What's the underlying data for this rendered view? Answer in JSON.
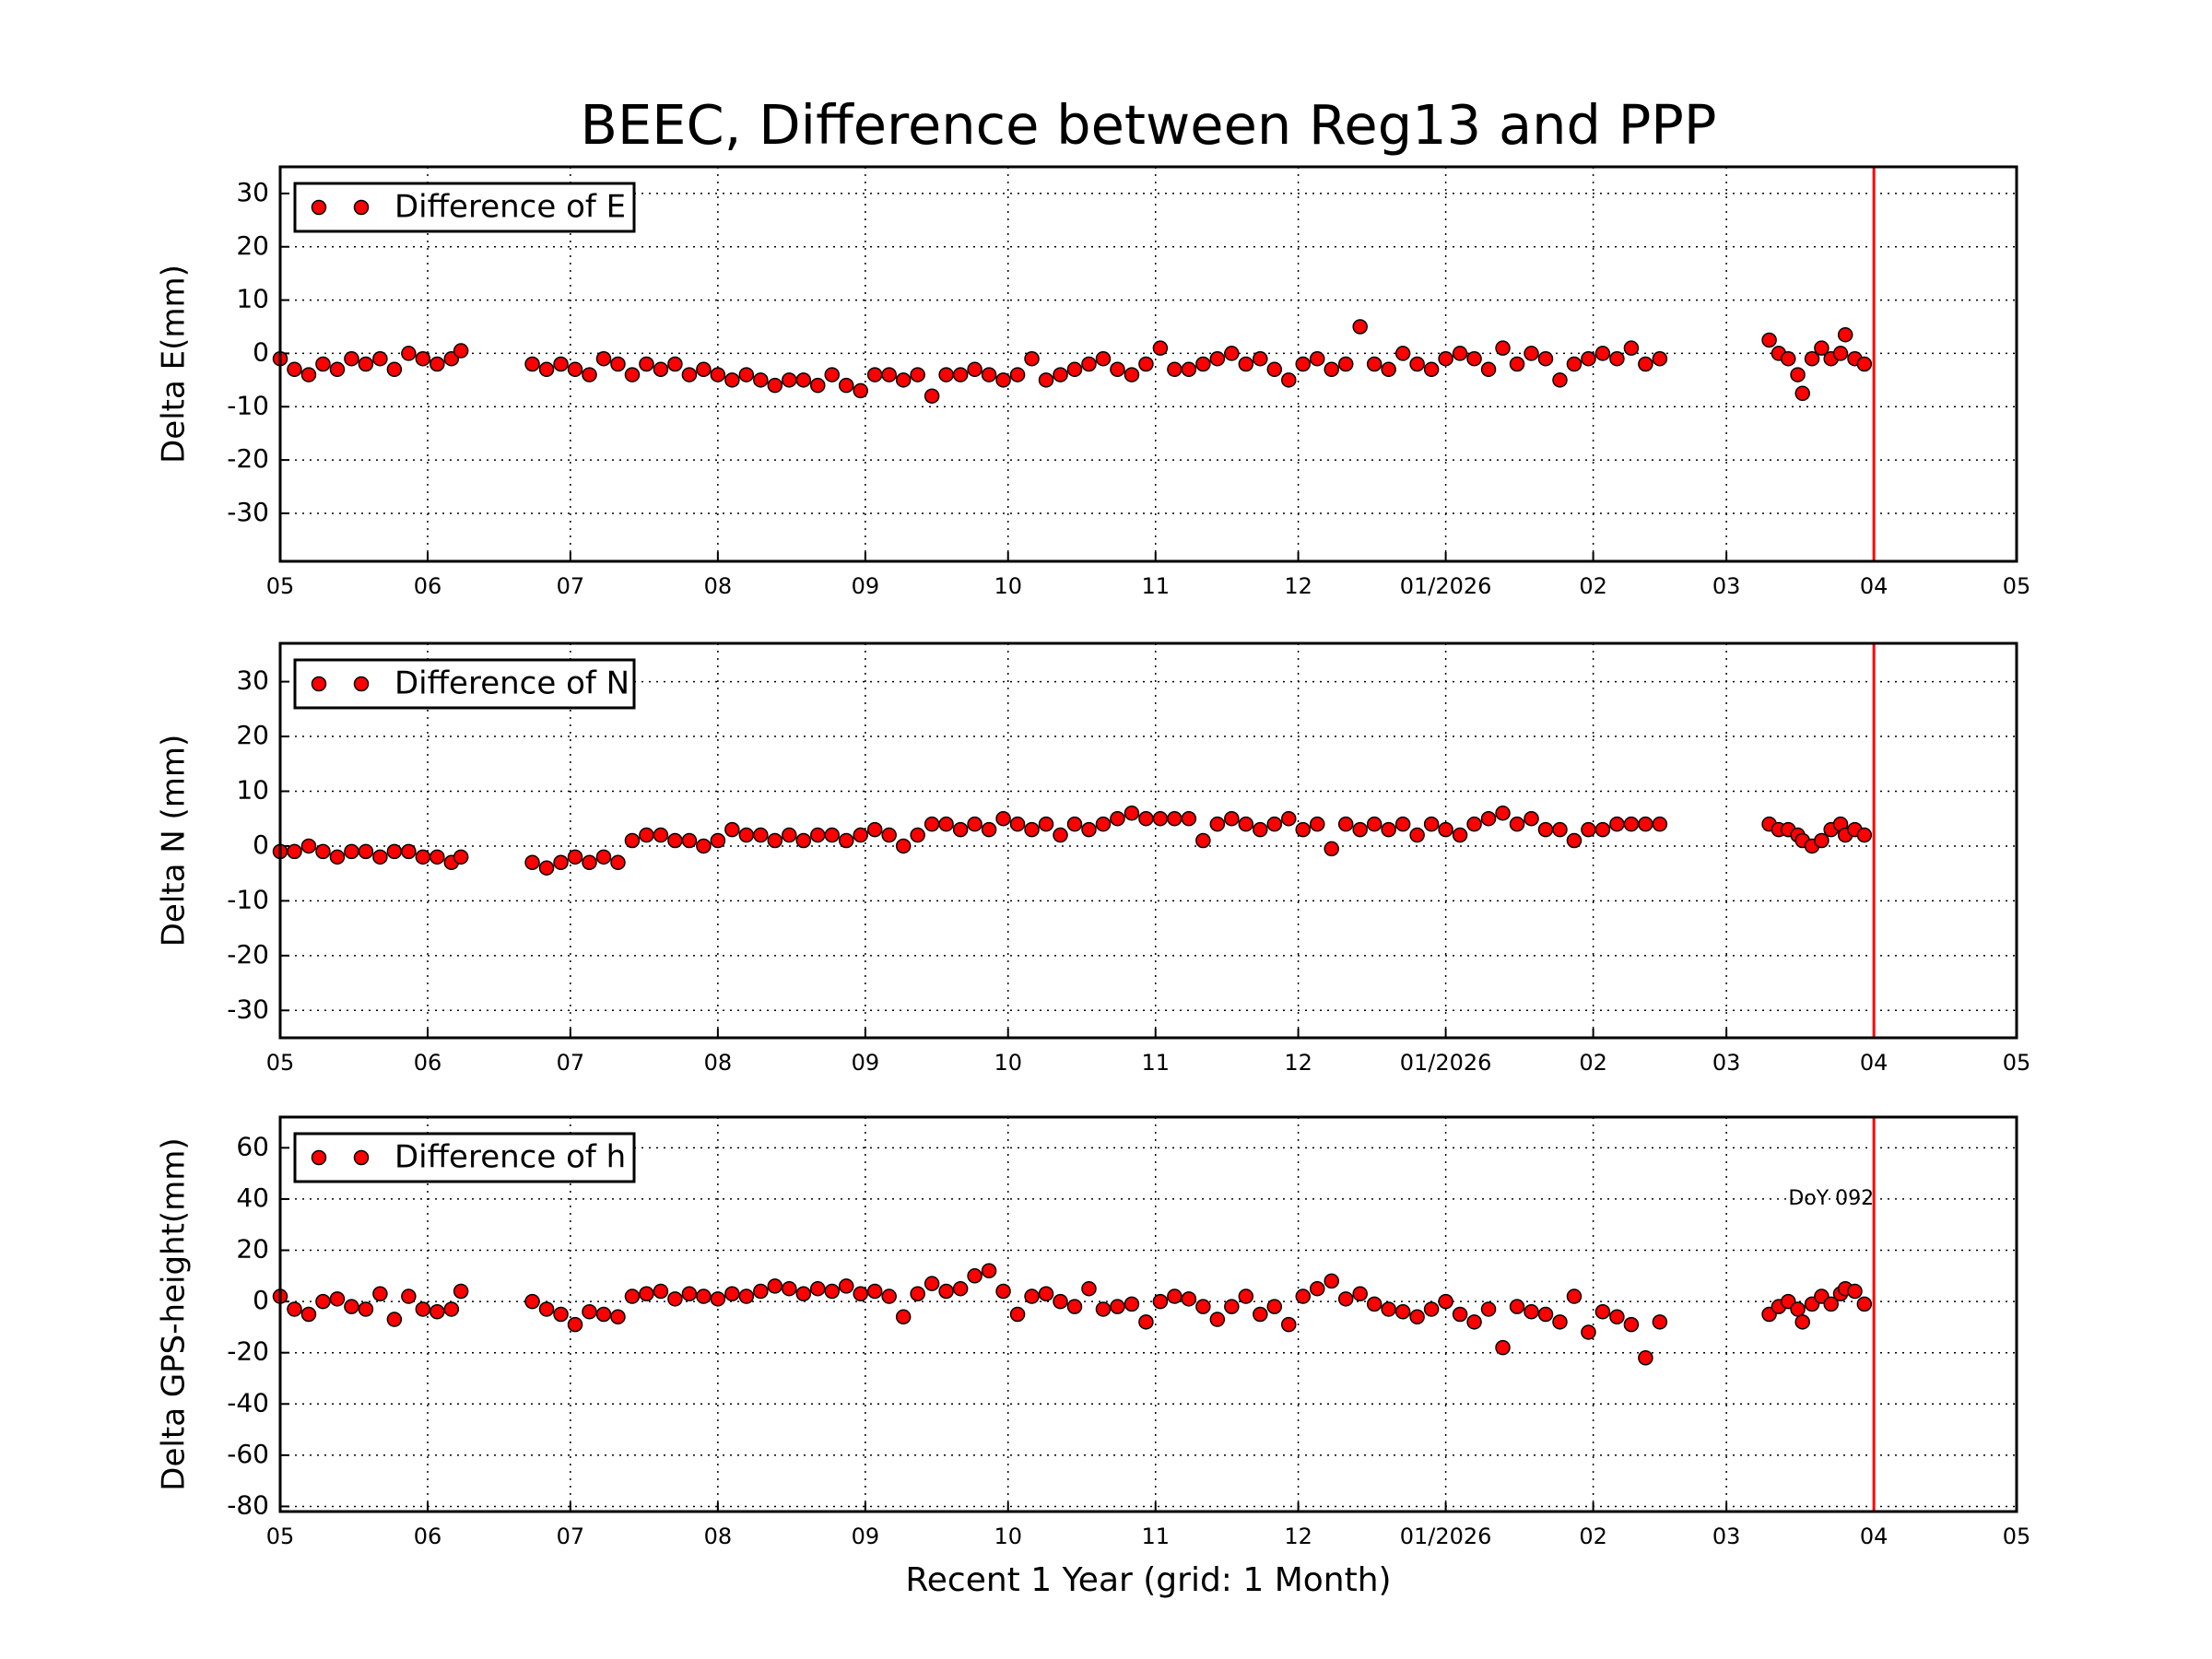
{
  "chart_data": [
    {
      "type": "scatter",
      "title": "BEEC, Difference between Reg13 and PPP",
      "y_label": "Delta E(mm)",
      "legend": "upper left",
      "grid": true,
      "xlim": [
        0,
        365
      ],
      "ylim": [
        -39,
        35
      ],
      "vline": 335,
      "vline_color": "#ff0000",
      "xticks": [
        {
          "value": 0,
          "label": "05"
        },
        {
          "value": 31,
          "label": "06"
        },
        {
          "value": 61,
          "label": "07"
        },
        {
          "value": 92,
          "label": "08"
        },
        {
          "value": 123,
          "label": "09"
        },
        {
          "value": 153,
          "label": "10"
        },
        {
          "value": 184,
          "label": "11"
        },
        {
          "value": 214,
          "label": "12"
        },
        {
          "value": 245,
          "label": "01/2026"
        },
        {
          "value": 276,
          "label": "02"
        },
        {
          "value": 304,
          "label": "03"
        },
        {
          "value": 335,
          "label": "04"
        },
        {
          "value": 365,
          "label": "05"
        }
      ],
      "yticks": [
        30,
        20,
        10,
        0,
        -10,
        -20,
        -30
      ],
      "series": [
        {
          "name": "Difference of E",
          "color": "#ff0000",
          "x": [
            0,
            3,
            6,
            9,
            12,
            15,
            18,
            21,
            24,
            27,
            30,
            33,
            36,
            38,
            53,
            56,
            59,
            62,
            65,
            68,
            71,
            74,
            77,
            80,
            83,
            86,
            89,
            92,
            95,
            98,
            101,
            104,
            107,
            110,
            113,
            116,
            119,
            122,
            125,
            128,
            131,
            134,
            137,
            140,
            143,
            146,
            149,
            152,
            155,
            158,
            161,
            164,
            167,
            170,
            173,
            176,
            179,
            182,
            185,
            188,
            191,
            194,
            197,
            200,
            203,
            206,
            209,
            212,
            215,
            218,
            221,
            224,
            227,
            230,
            233,
            236,
            239,
            242,
            245,
            248,
            251,
            254,
            257,
            260,
            263,
            266,
            269,
            272,
            275,
            278,
            281,
            284,
            287,
            290,
            313,
            315,
            317,
            319,
            320,
            322,
            324,
            326,
            328,
            329,
            331,
            333
          ],
          "values": [
            -1,
            -3,
            -4,
            -2,
            -3,
            -1,
            -2,
            -1,
            -3,
            0,
            -1,
            -2,
            -1,
            0.5,
            -2,
            -3,
            -2,
            -3,
            -4,
            -1,
            -2,
            -4,
            -2,
            -3,
            -2,
            -4,
            -3,
            -4,
            -5,
            -4,
            -5,
            -6,
            -5,
            -5,
            -6,
            -4,
            -6,
            -7,
            -4,
            -4,
            -5,
            -4,
            -8,
            -4,
            -4,
            -3,
            -4,
            -5,
            -4,
            -1,
            -5,
            -4,
            -3,
            -2,
            -1,
            -3,
            -4,
            -2,
            1,
            -3,
            -3,
            -2,
            -1,
            0,
            -2,
            -1,
            -3,
            -5,
            -2,
            -1,
            -3,
            -2,
            5,
            -2,
            -3,
            0,
            -2,
            -3,
            -1,
            0,
            -1,
            -3,
            1,
            -2,
            0,
            -1,
            -5,
            -2,
            -1,
            0,
            -1,
            1,
            -2,
            -1,
            2.5,
            0,
            -1,
            -4,
            -7.5,
            -1,
            1,
            -1,
            0,
            3.5,
            -1,
            -2
          ]
        }
      ]
    },
    {
      "type": "scatter",
      "y_label": "Delta N (mm)",
      "legend": "upper left",
      "grid": true,
      "xlim": [
        0,
        365
      ],
      "ylim": [
        -35,
        37
      ],
      "vline": 335,
      "vline_color": "#ff0000",
      "xticks": [
        {
          "value": 0,
          "label": "05"
        },
        {
          "value": 31,
          "label": "06"
        },
        {
          "value": 61,
          "label": "07"
        },
        {
          "value": 92,
          "label": "08"
        },
        {
          "value": 123,
          "label": "09"
        },
        {
          "value": 153,
          "label": "10"
        },
        {
          "value": 184,
          "label": "11"
        },
        {
          "value": 214,
          "label": "12"
        },
        {
          "value": 245,
          "label": "01/2026"
        },
        {
          "value": 276,
          "label": "02"
        },
        {
          "value": 304,
          "label": "03"
        },
        {
          "value": 335,
          "label": "04"
        },
        {
          "value": 365,
          "label": "05"
        }
      ],
      "yticks": [
        30,
        20,
        10,
        0,
        -10,
        -20,
        -30
      ],
      "series": [
        {
          "name": "Difference of N",
          "color": "#ff0000",
          "x": [
            0,
            3,
            6,
            9,
            12,
            15,
            18,
            21,
            24,
            27,
            30,
            33,
            36,
            38,
            53,
            56,
            59,
            62,
            65,
            68,
            71,
            74,
            77,
            80,
            83,
            86,
            89,
            92,
            95,
            98,
            101,
            104,
            107,
            110,
            113,
            116,
            119,
            122,
            125,
            128,
            131,
            134,
            137,
            140,
            143,
            146,
            149,
            152,
            155,
            158,
            161,
            164,
            167,
            170,
            173,
            176,
            179,
            182,
            185,
            188,
            191,
            194,
            197,
            200,
            203,
            206,
            209,
            212,
            215,
            218,
            221,
            224,
            227,
            230,
            233,
            236,
            239,
            242,
            245,
            248,
            251,
            254,
            257,
            260,
            263,
            266,
            269,
            272,
            275,
            278,
            281,
            284,
            287,
            290,
            313,
            315,
            317,
            319,
            320,
            322,
            324,
            326,
            328,
            329,
            331,
            333
          ],
          "values": [
            -1,
            -1,
            0,
            -1,
            -2,
            -1,
            -1,
            -2,
            -1,
            -1,
            -2,
            -2,
            -3,
            -2,
            -3,
            -4,
            -3,
            -2,
            -3,
            -2,
            -3,
            1,
            2,
            2,
            1,
            1,
            0,
            1,
            3,
            2,
            2,
            1,
            2,
            1,
            2,
            2,
            1,
            2,
            3,
            2,
            0,
            2,
            4,
            4,
            3,
            4,
            3,
            5,
            4,
            3,
            4,
            2,
            4,
            3,
            4,
            5,
            6,
            5,
            5,
            5,
            5,
            1,
            4,
            5,
            4,
            3,
            4,
            5,
            3,
            4,
            -0.5,
            4,
            3,
            4,
            3,
            4,
            2,
            4,
            3,
            2,
            4,
            5,
            6,
            4,
            5,
            3,
            3,
            1,
            3,
            3,
            4,
            4,
            4,
            4,
            4,
            3,
            3,
            2,
            1,
            0,
            1,
            3,
            4,
            2,
            3,
            2
          ]
        }
      ]
    },
    {
      "type": "scatter",
      "y_label": "Delta GPS-height(mm)",
      "x_label": "Recent 1 Year (grid: 1 Month)",
      "legend": "upper left",
      "grid": true,
      "xlim": [
        0,
        365
      ],
      "ylim": [
        -82,
        72
      ],
      "vline": 335,
      "vline_color": "#ff0000",
      "annotations": [
        {
          "text": "DoY 092",
          "x": 335,
          "y": 40,
          "color": "#ff0000"
        }
      ],
      "xticks": [
        {
          "value": 0,
          "label": "05"
        },
        {
          "value": 31,
          "label": "06"
        },
        {
          "value": 61,
          "label": "07"
        },
        {
          "value": 92,
          "label": "08"
        },
        {
          "value": 123,
          "label": "09"
        },
        {
          "value": 153,
          "label": "10"
        },
        {
          "value": 184,
          "label": "11"
        },
        {
          "value": 214,
          "label": "12"
        },
        {
          "value": 245,
          "label": "01/2026"
        },
        {
          "value": 276,
          "label": "02"
        },
        {
          "value": 304,
          "label": "03"
        },
        {
          "value": 335,
          "label": "04"
        },
        {
          "value": 365,
          "label": "05"
        }
      ],
      "yticks": [
        60,
        40,
        20,
        0,
        -20,
        -40,
        -60,
        -80
      ],
      "series": [
        {
          "name": "Difference of h",
          "color": "#ff0000",
          "x": [
            0,
            3,
            6,
            9,
            12,
            15,
            18,
            21,
            24,
            27,
            30,
            33,
            36,
            38,
            53,
            56,
            59,
            62,
            65,
            68,
            71,
            74,
            77,
            80,
            83,
            86,
            89,
            92,
            95,
            98,
            101,
            104,
            107,
            110,
            113,
            116,
            119,
            122,
            125,
            128,
            131,
            134,
            137,
            140,
            143,
            146,
            149,
            152,
            155,
            158,
            161,
            164,
            167,
            170,
            173,
            176,
            179,
            182,
            185,
            188,
            191,
            194,
            197,
            200,
            203,
            206,
            209,
            212,
            215,
            218,
            221,
            224,
            227,
            230,
            233,
            236,
            239,
            242,
            245,
            248,
            251,
            254,
            257,
            260,
            263,
            266,
            269,
            272,
            275,
            278,
            281,
            284,
            287,
            290,
            313,
            315,
            317,
            319,
            320,
            322,
            324,
            326,
            328,
            329,
            331,
            333
          ],
          "values": [
            2,
            -3,
            -5,
            0,
            1,
            -2,
            -3,
            3,
            -7,
            2,
            -3,
            -4,
            -3,
            4,
            0,
            -3,
            -5,
            -9,
            -4,
            -5,
            -6,
            2,
            3,
            4,
            1,
            3,
            2,
            1,
            3,
            2,
            4,
            6,
            5,
            3,
            5,
            4,
            6,
            3,
            4,
            2,
            -6,
            3,
            7,
            4,
            5,
            10,
            12,
            4,
            -5,
            2,
            3,
            0,
            -2,
            5,
            -3,
            -2,
            -1,
            -8,
            0,
            2,
            1,
            -2,
            -7,
            -2,
            2,
            -5,
            -2,
            -9,
            2,
            5,
            8,
            1,
            3,
            -1,
            -3,
            -4,
            -6,
            -3,
            0,
            -5,
            -8,
            -3,
            -18,
            -2,
            -4,
            -5,
            -8,
            2,
            -12,
            -4,
            -6,
            -9,
            -22,
            -8,
            -5,
            -2,
            0,
            -3,
            -8,
            -1,
            2,
            -1,
            3,
            5,
            4,
            -1
          ]
        }
      ]
    }
  ]
}
